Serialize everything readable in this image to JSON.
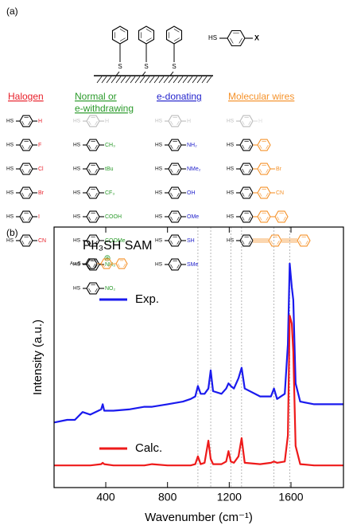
{
  "panel_a": {
    "label": "(a)",
    "surface_atom": "S",
    "hs": "HS",
    "x_label": "X",
    "columns": [
      {
        "heading": [
          "Halogen"
        ],
        "color": "#e8202a",
        "substituents": [
          "H",
          "F",
          "Cl",
          "Br",
          "I",
          "CN"
        ]
      },
      {
        "heading": [
          "Normal or",
          "e-withdrawing"
        ],
        "color": "#2a9a2a",
        "substituents": [
          "H",
          "CH₃",
          "tBu",
          "CF₃",
          "COOH",
          "COOMe",
          "NH₃",
          "NO₂"
        ]
      },
      {
        "heading": [
          "e-donating"
        ],
        "color": "#2323cc",
        "substituents": [
          "H",
          "NH₂",
          "NMe₂",
          "OH",
          "OMe",
          "SH",
          "SMe"
        ]
      },
      {
        "heading": [
          "Molecular wires"
        ],
        "color": "#f5922a",
        "substituents": [
          "H",
          "Br",
          "CN"
        ]
      }
    ]
  },
  "panel_b_label": "(b)",
  "chart_data": {
    "type": "line",
    "title": "Ph₃SH SAM",
    "inset_label": "Au₂S",
    "x_label": "Wavenumber (cm⁻¹)",
    "y_label": "Intensity (a.u.)",
    "x": [
      65,
      150,
      200,
      250,
      300,
      370,
      380,
      390,
      450,
      550,
      650,
      700,
      800,
      900,
      950,
      980,
      997,
      1015,
      1040,
      1065,
      1080,
      1095,
      1150,
      1180,
      1195,
      1210,
      1230,
      1260,
      1280,
      1300,
      1400,
      1470,
      1490,
      1510,
      1560,
      1580,
      1592,
      1605,
      1615,
      1630,
      1660,
      1750,
      1850,
      1940
    ],
    "series": [
      {
        "name": "Exp.",
        "color": "#1a1aee",
        "values": [
          2.5,
          2.6,
          2.6,
          2.9,
          2.8,
          3.0,
          3.2,
          2.95,
          2.95,
          3.0,
          3.1,
          3.1,
          3.2,
          3.3,
          3.4,
          3.5,
          3.9,
          3.6,
          3.6,
          3.8,
          4.5,
          3.7,
          3.6,
          3.8,
          4.0,
          3.9,
          3.8,
          4.2,
          4.6,
          3.8,
          3.5,
          3.5,
          3.8,
          3.4,
          3.6,
          5.5,
          8.6,
          7.7,
          7.2,
          4.0,
          3.3,
          3.2,
          3.2,
          3.2
        ]
      },
      {
        "name": "Calc.",
        "color": "#ee1a1a",
        "values": [
          0.85,
          0.85,
          0.85,
          0.85,
          0.85,
          0.9,
          0.95,
          0.9,
          0.85,
          0.85,
          0.85,
          0.9,
          0.85,
          0.85,
          0.85,
          0.9,
          1.2,
          0.9,
          0.95,
          1.8,
          1.1,
          0.9,
          0.9,
          1.0,
          1.4,
          1.0,
          0.95,
          1.2,
          1.9,
          0.95,
          0.9,
          0.95,
          1.0,
          0.95,
          1.0,
          2.0,
          6.6,
          6.3,
          5.2,
          1.6,
          0.9,
          0.85,
          0.85,
          0.85
        ]
      }
    ],
    "xlim": [
      65,
      1940
    ],
    "ylim": [
      0,
      10
    ],
    "xticks": [
      400,
      800,
      1200,
      1600
    ],
    "reference_lines": [
      997,
      1080,
      1210,
      1280,
      1490,
      1592
    ]
  }
}
